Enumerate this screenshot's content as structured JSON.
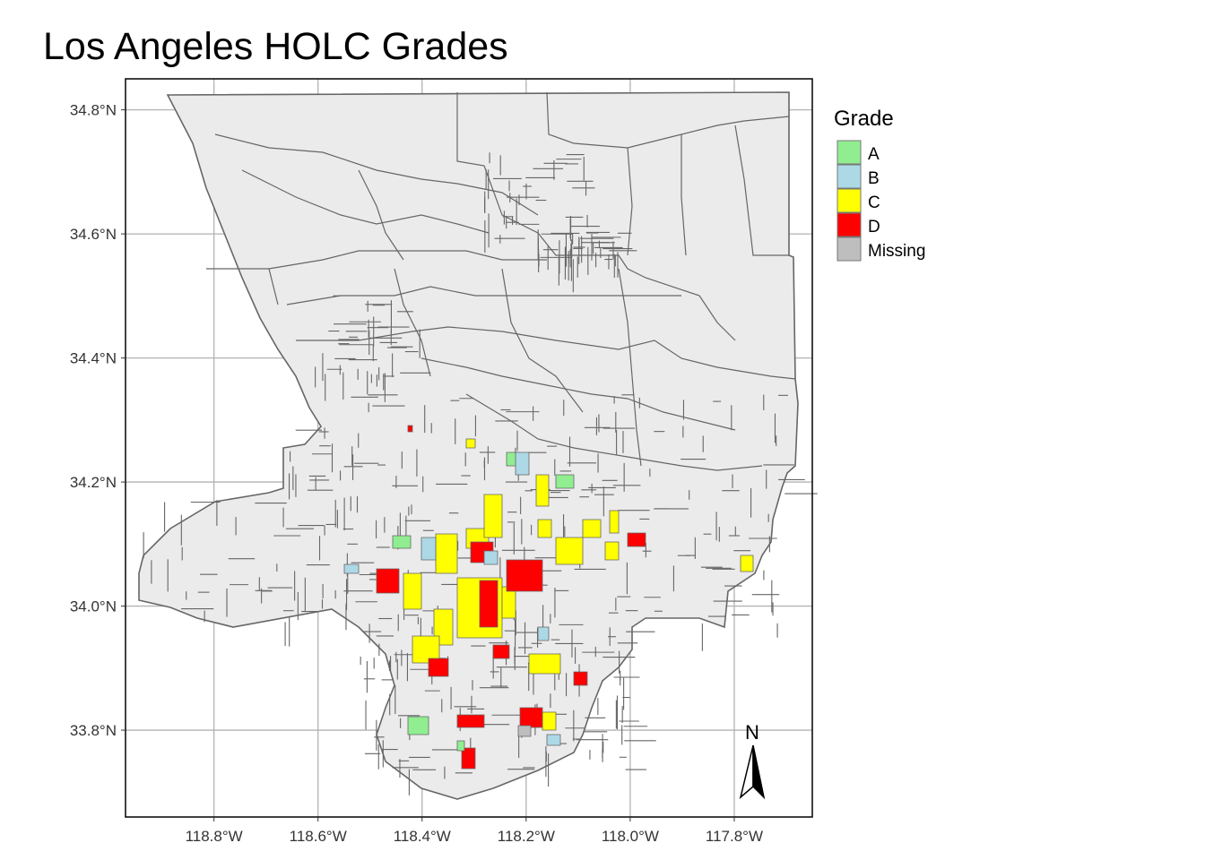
{
  "title": "Los Angeles HOLC Grades",
  "map": {
    "type": "choropleth",
    "region": "Los Angeles County",
    "lon_range": [
      -118.97,
      -117.65
    ],
    "lat_range": [
      33.66,
      34.85
    ],
    "x_ticks": [
      {
        "value": -118.8,
        "label": "118.8°W"
      },
      {
        "value": -118.6,
        "label": "118.6°W"
      },
      {
        "value": -118.4,
        "label": "118.4°W"
      },
      {
        "value": -118.2,
        "label": "118.2°W"
      },
      {
        "value": -118.0,
        "label": "118.0°W"
      },
      {
        "value": -117.8,
        "label": "117.8°W"
      }
    ],
    "y_ticks": [
      {
        "value": 34.8,
        "label": "34.8°N"
      },
      {
        "value": 34.6,
        "label": "34.6°N"
      },
      {
        "value": 34.4,
        "label": "34.4°N"
      },
      {
        "value": 34.2,
        "label": "34.2°N"
      },
      {
        "value": 34.0,
        "label": "34.0°N"
      },
      {
        "value": 33.8,
        "label": "33.8°N"
      }
    ],
    "grid": true,
    "north_arrow": {
      "label": "N",
      "placement": "bottom-right"
    }
  },
  "legend": {
    "title": "Grade",
    "placement": "right",
    "items": [
      {
        "label": "A",
        "color": "#90EE90"
      },
      {
        "label": "B",
        "color": "#ADD8E6"
      },
      {
        "label": "C",
        "color": "#FFFF00"
      },
      {
        "label": "D",
        "color": "#FF0000"
      },
      {
        "label": "Missing",
        "color": "#BEBEBE"
      }
    ]
  },
  "colors": {
    "land": "#EBEBEB",
    "tract_border": "#666666",
    "grid": "#B3B3B3",
    "panel_border": "#000000"
  }
}
